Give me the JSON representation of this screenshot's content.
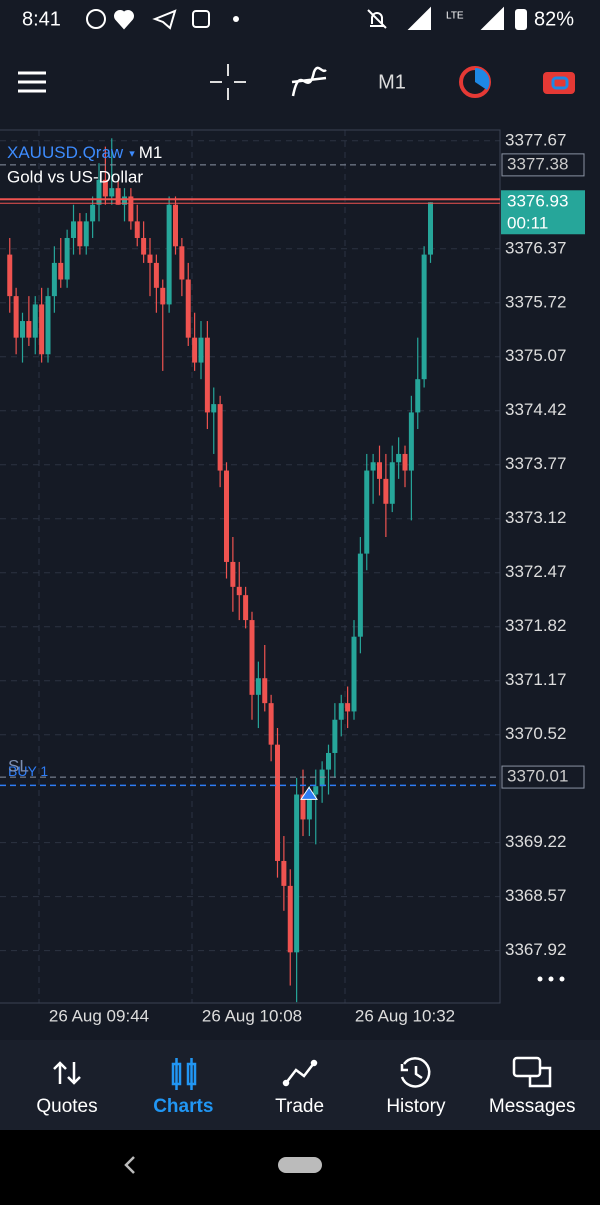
{
  "status_bar": {
    "time": "8:41",
    "network": "LTE",
    "battery": "82%"
  },
  "toolbar": {
    "timeframe": "M1"
  },
  "chart_data": {
    "type": "candlestick",
    "title": "XAUUSD.Qraw",
    "timeframe": "M1",
    "subtitle": "Gold vs US-Dollar",
    "categories": [
      null,
      null,
      null,
      null,
      null,
      null,
      null,
      null,
      null,
      null,
      null,
      null,
      null,
      null,
      "26 Aug 09:44",
      null,
      null,
      null,
      null,
      null,
      null,
      null,
      null,
      null,
      null,
      null,
      null,
      null,
      null,
      null,
      null,
      null,
      null,
      null,
      null,
      null,
      null,
      null,
      "26 Aug 10:08",
      null,
      null,
      null,
      null,
      null,
      null,
      null,
      null,
      null,
      null,
      null,
      null,
      null,
      null,
      null,
      null,
      null,
      null,
      null,
      null,
      null,
      null,
      null,
      "26 Aug 10:32",
      null,
      null,
      null,
      null
    ],
    "open": [
      3376.3,
      3375.8,
      3375.3,
      3375.5,
      3375.3,
      3375.7,
      3375.1,
      3375.8,
      3376.2,
      3376.0,
      3376.5,
      3376.7,
      3376.4,
      3376.7,
      3376.9,
      3377.2,
      3377.0,
      3377.1,
      3376.9,
      3377.0,
      3376.7,
      3376.5,
      3376.3,
      3376.2,
      3375.9,
      3375.7,
      3376.9,
      3376.4,
      3376.0,
      3375.3,
      3375.0,
      3375.3,
      3374.4,
      3374.5,
      3373.7,
      3372.6,
      3372.3,
      3372.2,
      3371.9,
      3371.0,
      3371.2,
      3370.9,
      3370.4,
      3369.0,
      3368.7,
      3367.9,
      3369.8,
      3369.5,
      3369.8,
      3369.9,
      3370.1,
      3370.3,
      3370.7,
      3370.9,
      3370.8,
      3371.7,
      3372.7,
      3373.7,
      3373.8,
      3373.6,
      3373.3,
      3373.8,
      3373.9,
      3373.7,
      3374.4,
      3374.8,
      3376.3
    ],
    "high": [
      3376.5,
      3375.9,
      3375.6,
      3375.8,
      3375.8,
      3375.9,
      3375.9,
      3376.4,
      3376.5,
      3376.6,
      3376.9,
      3376.8,
      3376.8,
      3377.0,
      3377.4,
      3377.6,
      3377.7,
      3377.2,
      3377.1,
      3377.1,
      3376.9,
      3376.7,
      3376.5,
      3376.3,
      3376.0,
      3377.0,
      3377.0,
      3376.5,
      3376.2,
      3375.6,
      3375.5,
      3375.5,
      3374.7,
      3374.6,
      3373.8,
      3372.9,
      3372.6,
      3372.3,
      3372.0,
      3371.4,
      3371.6,
      3371.0,
      3370.6,
      3369.3,
      3368.9,
      3370.0,
      3370.1,
      3369.9,
      3370.1,
      3370.2,
      3370.4,
      3370.9,
      3371.0,
      3371.1,
      3371.9,
      3372.9,
      3373.9,
      3373.9,
      3374.0,
      3373.9,
      3374.0,
      3374.1,
      3374.0,
      3374.6,
      3375.3,
      3376.4,
      3376.93
    ],
    "low": [
      3375.6,
      3375.1,
      3375.0,
      3375.2,
      3375.1,
      3375.0,
      3375.0,
      3375.6,
      3375.9,
      3375.9,
      3376.3,
      3376.3,
      3376.3,
      3376.5,
      3376.7,
      3376.9,
      3376.9,
      3376.9,
      3376.7,
      3376.6,
      3376.4,
      3376.2,
      3375.8,
      3375.6,
      3374.9,
      3375.6,
      3376.3,
      3375.8,
      3375.2,
      3374.9,
      3374.8,
      3374.2,
      3373.9,
      3373.5,
      3372.4,
      3372.0,
      3371.9,
      3371.8,
      3370.7,
      3370.6,
      3370.8,
      3370.2,
      3368.8,
      3368.4,
      3367.5,
      3367.3,
      3369.3,
      3369.3,
      3369.2,
      3369.7,
      3369.8,
      3370.0,
      3370.5,
      3370.6,
      3370.7,
      3371.5,
      3372.5,
      3373.3,
      3373.4,
      3372.9,
      3373.2,
      3373.6,
      3373.5,
      3373.1,
      3374.2,
      3374.7,
      3376.2
    ],
    "close": [
      3375.8,
      3375.3,
      3375.5,
      3375.3,
      3375.7,
      3375.1,
      3375.8,
      3376.2,
      3376.0,
      3376.5,
      3376.7,
      3376.4,
      3376.7,
      3376.9,
      3377.2,
      3377.0,
      3377.1,
      3376.9,
      3377.0,
      3376.7,
      3376.5,
      3376.3,
      3376.2,
      3375.9,
      3375.7,
      3376.9,
      3376.4,
      3376.0,
      3375.3,
      3375.0,
      3375.3,
      3374.4,
      3374.5,
      3373.7,
      3372.6,
      3372.3,
      3372.2,
      3371.9,
      3371.0,
      3371.2,
      3370.9,
      3370.4,
      3369.0,
      3368.7,
      3367.9,
      3369.8,
      3369.5,
      3369.8,
      3369.9,
      3370.1,
      3370.3,
      3370.7,
      3370.9,
      3370.8,
      3371.7,
      3372.7,
      3373.7,
      3373.8,
      3373.6,
      3373.3,
      3373.8,
      3373.9,
      3373.7,
      3374.4,
      3374.8,
      3376.3,
      3376.93
    ],
    "up_color": "#26a69a",
    "down_color": "#ef5350",
    "ylim": [
      3367.29,
      3377.8
    ],
    "yticks": [
      3377.67,
      3376.37,
      3375.72,
      3375.07,
      3374.42,
      3373.77,
      3373.12,
      3372.47,
      3371.82,
      3371.17,
      3370.52,
      3369.22,
      3368.57,
      3367.92
    ],
    "grid": true,
    "ask_line": 3377.38,
    "bid_line": 3376.93,
    "bid_timer": "00:11",
    "sl_line": {
      "label": "SL",
      "value": 3370.01
    },
    "order_line": {
      "label": "BUY 1",
      "value": 3369.91
    }
  },
  "nav": {
    "items": [
      "Quotes",
      "Charts",
      "Trade",
      "History",
      "Messages"
    ],
    "active": 1
  }
}
